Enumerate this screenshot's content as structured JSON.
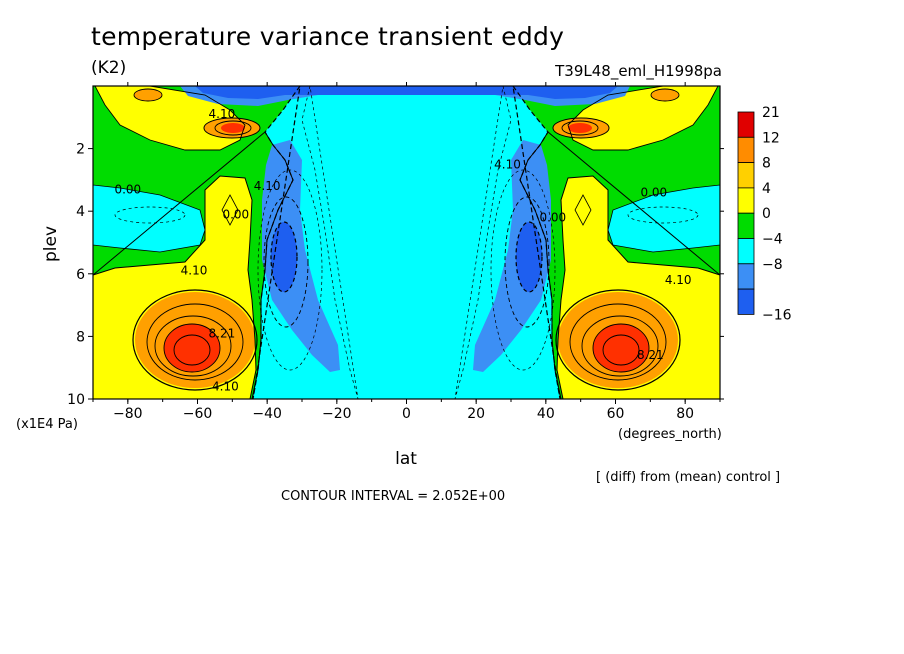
{
  "header": {
    "title": "temperature variance transient eddy",
    "units": "(K2)",
    "run_name": "T39L48_eml_H1998pa"
  },
  "notes": {
    "difference": "[ (diff) from (mean) control ]",
    "contour_interval": "CONTOUR INTERVAL = 2.052E+00"
  },
  "colors": {
    "lt_neg16": "#1e5ff0",
    "neg16_to_neg8": "#3c8ff5",
    "neg8_to_neg4": "#0cd8ff",
    "neg4_to_0": "#00ffff",
    "0_to_4": "#00dc00",
    "4_to_8": "#ffff00",
    "8_to_12": "#ffa000",
    "12_to_21": "#ff3000",
    "gt21": "#e00000"
  },
  "chart_data": {
    "type": "heatmap",
    "subtype": "filled-contour",
    "title": "temperature variance transient eddy",
    "xlabel": "lat",
    "x_unit_label": "(degrees_north)",
    "ylabel": "plev",
    "y_unit_label": "(x1E4 Pa)",
    "xlim": [
      -90,
      90
    ],
    "ylim": [
      10,
      0
    ],
    "y_axis_inverted": true,
    "x_ticks": [
      -80,
      -60,
      -40,
      -20,
      0,
      20,
      40,
      60,
      80
    ],
    "x_tick_labels": [
      "−80",
      "−60",
      "−40",
      "−20",
      "0",
      "20",
      "40",
      "60",
      "80"
    ],
    "y_ticks": [
      2,
      4,
      6,
      8,
      10
    ],
    "y_tick_labels": [
      "2",
      "4",
      "6",
      "8",
      "10"
    ],
    "contour_interval": 2.052,
    "colorbar": {
      "levels": [
        21,
        12,
        8,
        4,
        0,
        -4,
        -8,
        -16
      ],
      "labels": [
        "21",
        "12",
        "8",
        "4",
        "0",
        "−4",
        "−8",
        "−16"
      ],
      "colors": [
        "#e00000",
        "#ff8c00",
        "#ffd000",
        "#ffff00",
        "#00dc00",
        "#00ffff",
        "#3c8ff5",
        "#1e5ff0"
      ]
    },
    "contour_labels": [
      {
        "text": "4.10",
        "lat": -53,
        "plev": 0.9
      },
      {
        "text": "4.10",
        "lat": -40,
        "plev": 3.2
      },
      {
        "text": "0.00",
        "lat": -80,
        "plev": 3.3
      },
      {
        "text": "0.00",
        "lat": -49,
        "plev": 4.1
      },
      {
        "text": "4.10",
        "lat": -61,
        "plev": 5.9
      },
      {
        "text": "8.21",
        "lat": -53,
        "plev": 7.9
      },
      {
        "text": "4.10",
        "lat": -52,
        "plev": 9.6
      },
      {
        "text": "4.10",
        "lat": 29,
        "plev": 2.5
      },
      {
        "text": "0.00",
        "lat": 42,
        "plev": 4.2
      },
      {
        "text": "0.00",
        "lat": 71,
        "plev": 3.4
      },
      {
        "text": "4.10",
        "lat": 78,
        "plev": 6.2
      },
      {
        "text": "8.21",
        "lat": 70,
        "plev": 8.6
      }
    ],
    "features": [
      {
        "kind": "max",
        "lat": -60,
        "plev": 8.4,
        "value": 21
      },
      {
        "kind": "max",
        "lat": 60,
        "plev": 8.4,
        "value": 21
      },
      {
        "kind": "max",
        "lat": -49,
        "plev": 1.4,
        "value": 12
      },
      {
        "kind": "max",
        "lat": 48,
        "plev": 1.4,
        "value": 12
      },
      {
        "kind": "min",
        "lat": -34,
        "plev": 5.3,
        "value": -8
      },
      {
        "kind": "min",
        "lat": 34,
        "plev": 5.3,
        "value": -8
      }
    ]
  }
}
